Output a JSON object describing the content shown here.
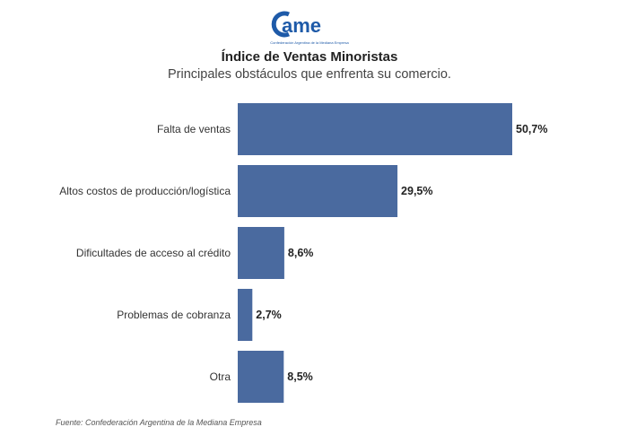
{
  "logo": {
    "text": "came",
    "tagline": "Confederación Argentina de la Mediana Empresa"
  },
  "header": {
    "title": "Índice de Ventas Minoristas",
    "subtitle": "Principales obstáculos que enfrenta su comercio."
  },
  "colors": {
    "bar": "#4a6a9f",
    "logo": "#1e5aa8"
  },
  "chart_data": {
    "type": "bar",
    "orientation": "horizontal",
    "categories": [
      "Falta de ventas",
      "Altos costos de producción/logística",
      "Dificultades de acceso al crédito",
      "Problemas de cobranza",
      "Otra"
    ],
    "values": [
      50.7,
      29.5,
      8.6,
      2.7,
      8.5
    ],
    "value_labels": [
      "50,7%",
      "29,5%",
      "8,6%",
      "2,7%",
      "8,5%"
    ],
    "xlim": [
      0,
      50.7
    ],
    "grid": false,
    "legend": "none"
  },
  "footer": {
    "source": "Fuente: Confederación Argentina de la Mediana Empresa"
  }
}
